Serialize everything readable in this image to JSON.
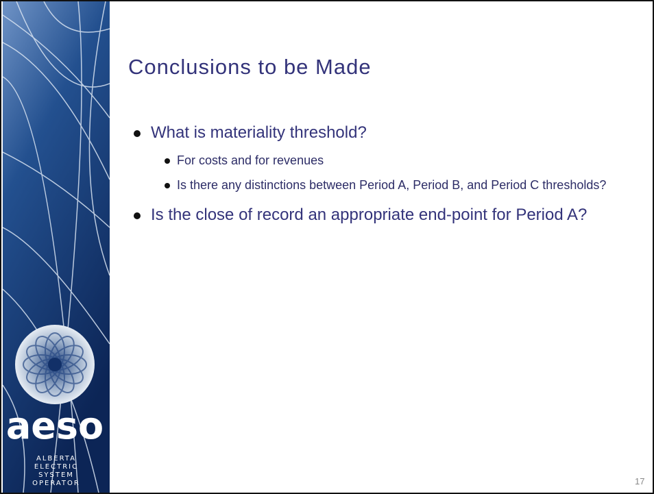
{
  "logo": {
    "name": "aeso",
    "tagline": [
      "ALBERTA",
      "ELECTRIC",
      "SYSTEM",
      "OPERATOR"
    ]
  },
  "title": "Conclusions to be Made",
  "bullets": [
    {
      "text": "What is materiality threshold?",
      "children": [
        "For costs and for revenues",
        "Is there any distinctions between Period A, Period B, and Period C thresholds?"
      ]
    },
    {
      "text": "Is the close of record an appropriate end-point for Period A?",
      "children": []
    }
  ],
  "page_number": "17"
}
